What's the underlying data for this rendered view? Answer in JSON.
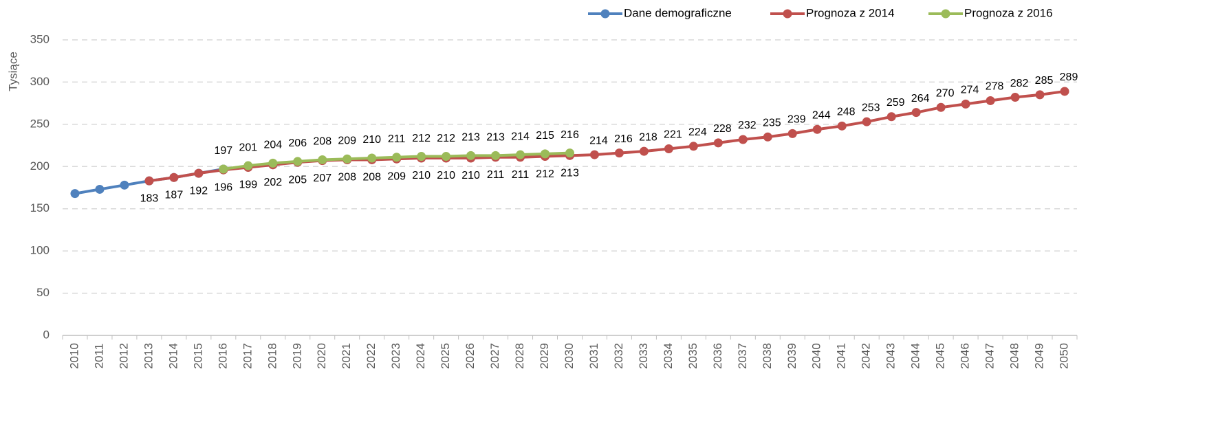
{
  "chart_data": {
    "type": "line",
    "y_label": "Tysiące",
    "categories": [
      "2010",
      "2011",
      "2012",
      "2013",
      "2014",
      "2015",
      "2016",
      "2017",
      "2018",
      "2019",
      "2020",
      "2021",
      "2022",
      "2023",
      "2024",
      "2025",
      "2026",
      "2027",
      "2028",
      "2029",
      "2030",
      "2031",
      "2032",
      "2033",
      "2034",
      "2035",
      "2036",
      "2037",
      "2038",
      "2039",
      "2040",
      "2041",
      "2042",
      "2043",
      "2044",
      "2045",
      "2046",
      "2047",
      "2048",
      "2049",
      "2050"
    ],
    "series": [
      {
        "name": "Dane demograficzne",
        "color": "#4f81bd",
        "labels": false,
        "values": [
          168,
          173,
          178,
          183,
          187,
          192,
          197,
          null,
          null,
          null,
          null,
          null,
          null,
          null,
          null,
          null,
          null,
          null,
          null,
          null,
          null,
          null,
          null,
          null,
          null,
          null,
          null,
          null,
          null,
          null,
          null,
          null,
          null,
          null,
          null,
          null,
          null,
          null,
          null,
          null,
          null
        ]
      },
      {
        "name": "Prognoza z 2014",
        "color": "#c0504d",
        "labels": true,
        "values": [
          null,
          null,
          null,
          183,
          187,
          192,
          196,
          199,
          202,
          205,
          207,
          208,
          208,
          209,
          210,
          210,
          210,
          211,
          211,
          212,
          213,
          214,
          216,
          218,
          221,
          224,
          228,
          232,
          235,
          239,
          244,
          248,
          253,
          259,
          264,
          270,
          274,
          278,
          282,
          285,
          289
        ]
      },
      {
        "name": "Prognoza z 2016",
        "color": "#9bbb59",
        "labels": true,
        "values": [
          null,
          null,
          null,
          null,
          null,
          null,
          197,
          201,
          204,
          206,
          208,
          209,
          210,
          211,
          212,
          212,
          213,
          213,
          214,
          215,
          216,
          null,
          null,
          null,
          null,
          null,
          null,
          null,
          null,
          null,
          null,
          null,
          null,
          null,
          null,
          null,
          null,
          null,
          null,
          null,
          null
        ]
      }
    ],
    "ylim": [
      0,
      350
    ],
    "yticks": [
      0,
      50,
      100,
      150,
      200,
      250,
      300,
      350
    ],
    "grid": true,
    "legend": "top-right"
  }
}
